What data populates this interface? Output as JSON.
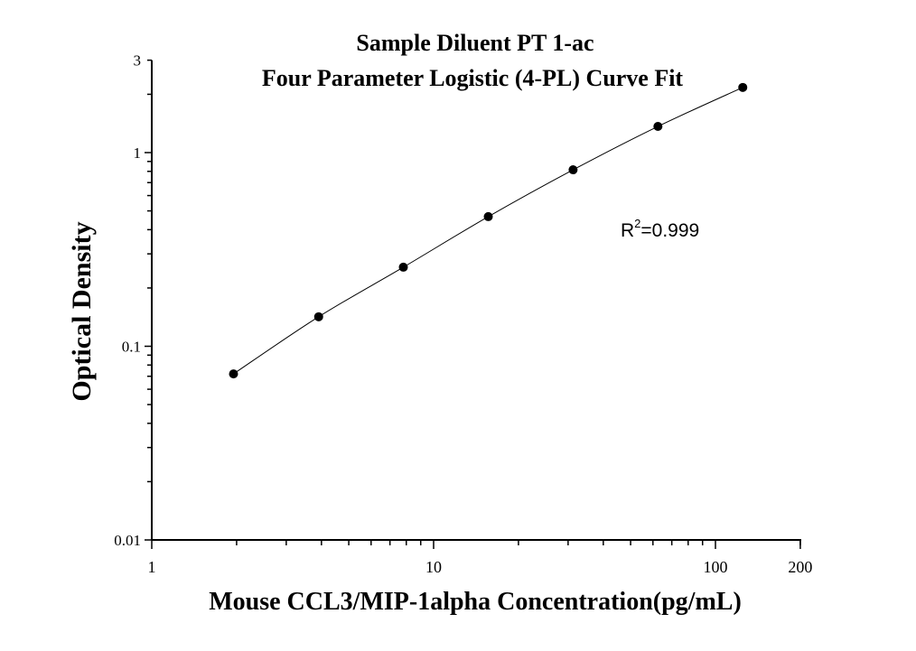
{
  "chart_data": {
    "type": "scatter",
    "title": "Sample Diluent PT 1-ac",
    "subtitle": "Four Parameter Logistic (4-PL) Curve Fit",
    "xlabel": "Mouse CCL3/MIP-1alpha Concentration(pg/mL)",
    "ylabel": "Optical Density",
    "x_scale": "log",
    "y_scale": "log",
    "xlim": [
      1,
      200
    ],
    "ylim": [
      0.01,
      3
    ],
    "x_ticks": [
      "1",
      "10",
      "100",
      "200"
    ],
    "y_ticks": [
      "0.01",
      "0.1",
      "1",
      "3"
    ],
    "grid": false,
    "annotation": {
      "prefix": "R",
      "superscript": "2",
      "text": "=0.999"
    },
    "series": [
      {
        "x": [
          1.95,
          3.91,
          7.81,
          15.63,
          31.25,
          62.5,
          125
        ],
        "y": [
          0.072,
          0.142,
          0.256,
          0.467,
          0.815,
          1.365,
          2.17
        ],
        "fit": "4-PL",
        "color": "#000000"
      }
    ]
  }
}
